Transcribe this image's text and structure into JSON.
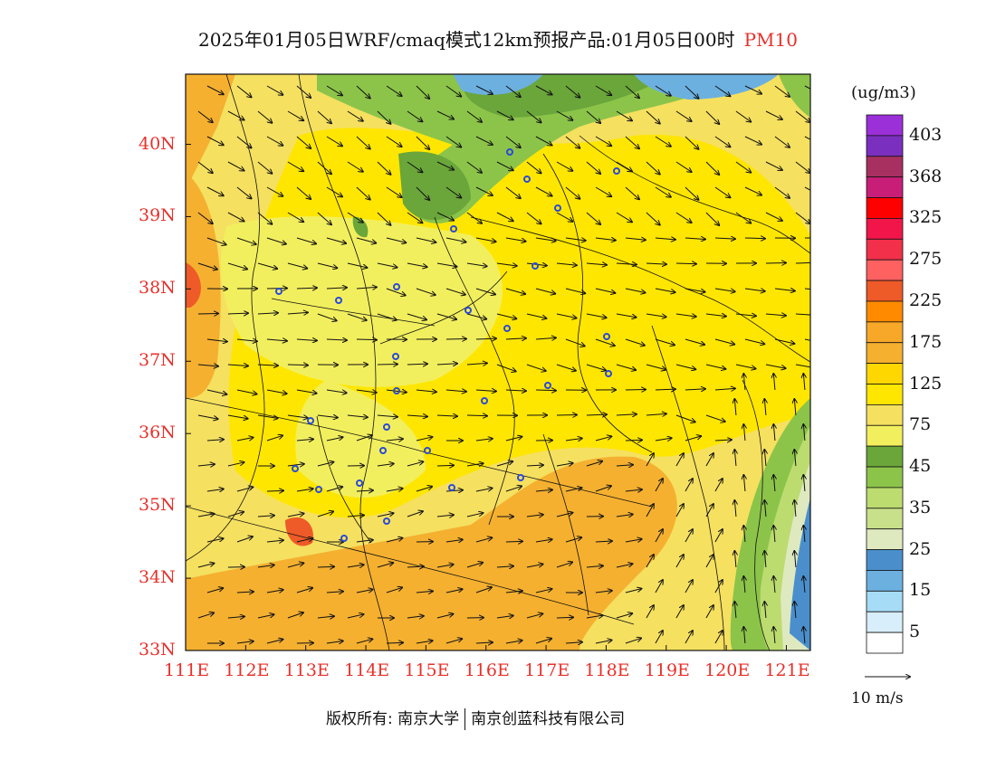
{
  "title": {
    "text": "2025年01月05日WRF/cmaq模式12km预报产品:01月05日00时",
    "pollutant": "PM10"
  },
  "units": "(ug/m3)",
  "colorbar": {
    "levels": [
      "403",
      "368",
      "325",
      "275",
      "225",
      "175",
      "125",
      "75",
      "45",
      "35",
      "25",
      "15",
      "5"
    ],
    "colors": [
      "#9b30d9",
      "#7b2fbf",
      "#a83060",
      "#c81e78",
      "#ff0000",
      "#f2154a",
      "#f2304a",
      "#ff6060",
      "#ee5a28",
      "#ff8a00",
      "#f7a829",
      "#f5b030",
      "#ffd700",
      "#ffe600",
      "#f5e060",
      "#f2ef5e",
      "#6aa63a",
      "#8cc44a",
      "#bcdc70",
      "#c8e08a",
      "#dfe9c0",
      "#4a8fcc",
      "#6cb0e0",
      "#a6dcf5",
      "#d8eefa",
      "#ffffff"
    ]
  },
  "wind_reference": "10  m/s",
  "axes": {
    "lat_labels": [
      "40N",
      "39N",
      "38N",
      "37N",
      "36N",
      "35N",
      "34N",
      "33N"
    ],
    "lon_labels": [
      "111E",
      "112E",
      "113E",
      "114E",
      "115E",
      "116E",
      "117E",
      "118E",
      "119E",
      "120E",
      "121E"
    ]
  },
  "copyright": {
    "prefix": "版权所有:",
    "owner1": "南京大学",
    "owner2": "南京创蓝科技有限公司"
  },
  "colors": {
    "axis_label": "#e8302a",
    "title_pollutant": "#e8302a",
    "station_marker": "#2a4bd8"
  }
}
